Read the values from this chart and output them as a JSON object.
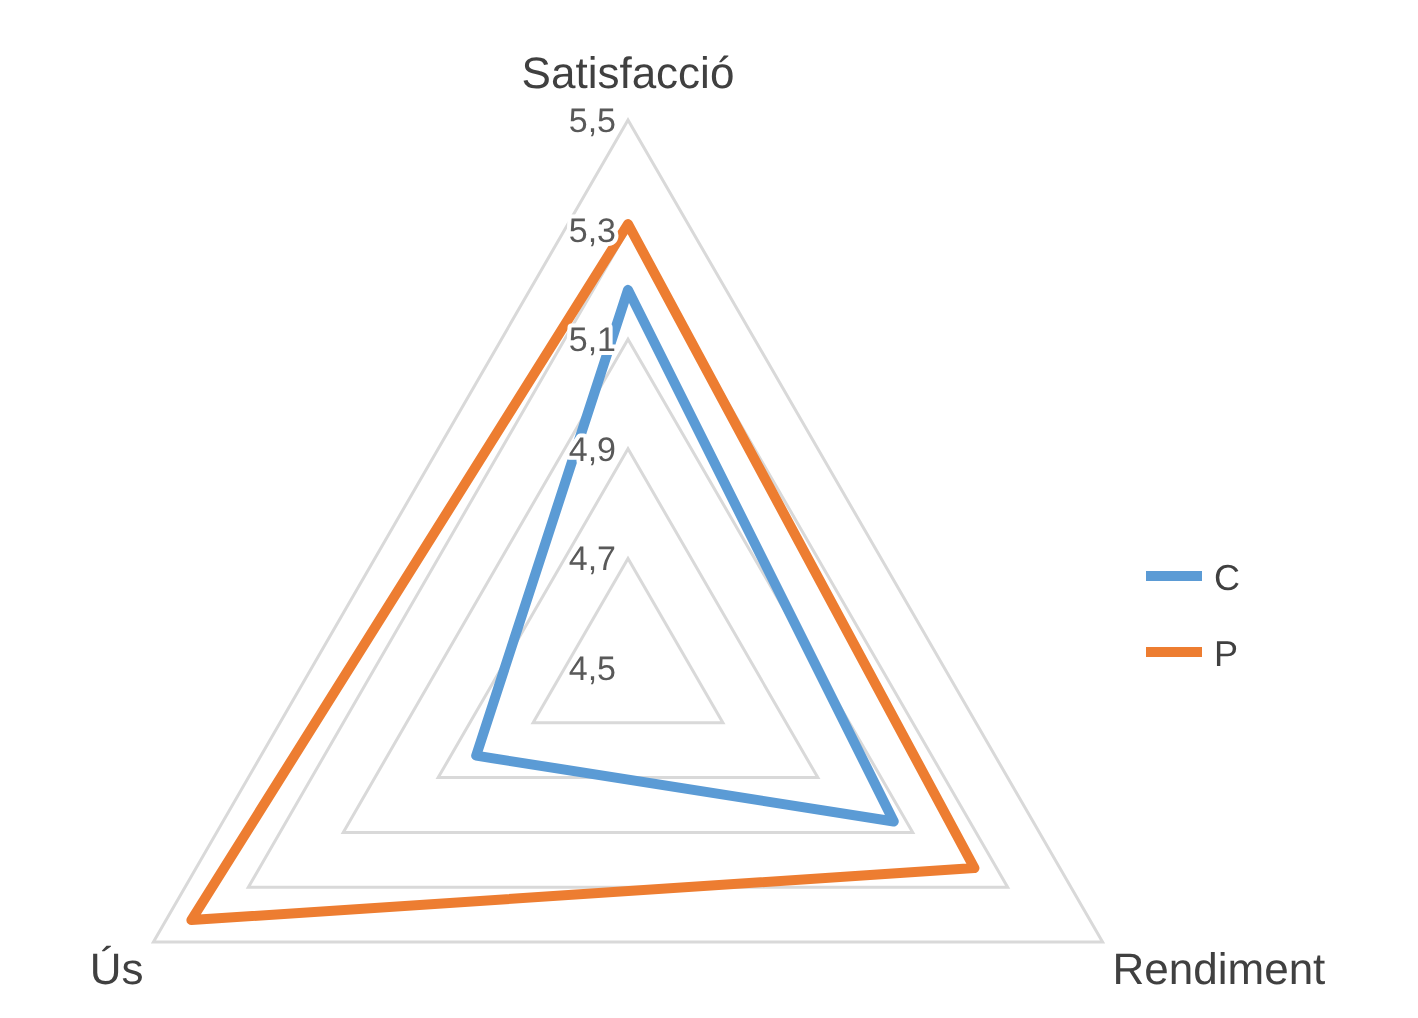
{
  "chart_data": {
    "type": "radar",
    "categories": [
      "Satisfacció",
      "Rendiment",
      "Ús"
    ],
    "series": [
      {
        "name": "C",
        "color": "#5b9bd5",
        "values": [
          5.19,
          5.06,
          4.82
        ]
      },
      {
        "name": "P",
        "color": "#ed7d31",
        "values": [
          5.31,
          5.23,
          5.42
        ]
      }
    ],
    "ylim": [
      4.5,
      5.5
    ],
    "yticks": [
      {
        "value": 4.5,
        "label": "4,5"
      },
      {
        "value": 4.7,
        "label": "4,7"
      },
      {
        "value": 4.9,
        "label": "4,9"
      },
      {
        "value": 5.1,
        "label": "5,1"
      },
      {
        "value": 5.3,
        "label": "5,3"
      },
      {
        "value": 5.5,
        "label": "5,5"
      }
    ],
    "grid": true,
    "legend": "right"
  }
}
